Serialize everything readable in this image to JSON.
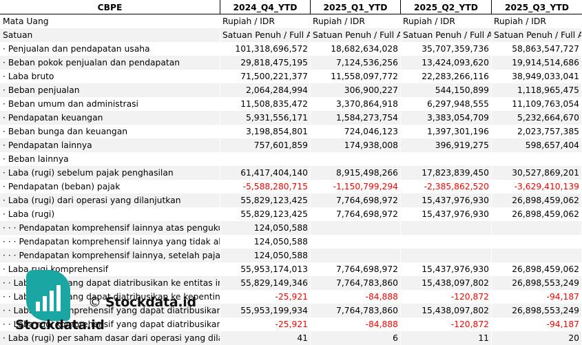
{
  "header": {
    "ticker": "CBPE",
    "periods": [
      "2024_Q4_YTD",
      "2025_Q1_YTD",
      "2025_Q2_YTD",
      "2025_Q3_YTD"
    ]
  },
  "currency_row": {
    "label": "Mata Uang",
    "values": [
      "Rupiah / IDR",
      "Rupiah / IDR",
      "Rupiah / IDR",
      "Rupiah / IDR"
    ]
  },
  "unit_row": {
    "label": "Satuan",
    "values": [
      "Satuan Penuh / Full Amount",
      "Satuan Penuh / Full Amount",
      "Satuan Penuh / Full Amount",
      "Satuan Penuh / Full Amount"
    ]
  },
  "rows": [
    {
      "label": "· Penjualan dan pendapatan usaha",
      "values": [
        "101,318,696,572",
        "18,682,634,028",
        "35,707,359,736",
        "58,863,547,727"
      ]
    },
    {
      "label": "· Beban pokok penjualan dan pendapatan",
      "values": [
        "29,818,475,195",
        "7,124,536,256",
        "13,424,093,620",
        "19,914,514,686"
      ]
    },
    {
      "label": "· Laba bruto",
      "values": [
        "71,500,221,377",
        "11,558,097,772",
        "22,283,266,116",
        "38,949,033,041"
      ]
    },
    {
      "label": "· Beban penjualan",
      "values": [
        "2,064,284,994",
        "306,900,227",
        "544,150,899",
        "1,118,965,475"
      ]
    },
    {
      "label": "· Beban umum dan administrasi",
      "values": [
        "11,508,835,472",
        "3,370,864,918",
        "6,297,948,555",
        "11,109,763,054"
      ]
    },
    {
      "label": "· Pendapatan keuangan",
      "values": [
        "5,931,556,171",
        "1,584,273,754",
        "3,383,054,709",
        "5,232,664,670"
      ]
    },
    {
      "label": "· Beban bunga dan keuangan",
      "values": [
        "3,198,854,801",
        "724,046,123",
        "1,397,301,196",
        "2,023,757,385"
      ]
    },
    {
      "label": "· Pendapatan lainnya",
      "values": [
        "757,601,859",
        "174,938,008",
        "396,919,275",
        "598,657,404"
      ]
    },
    {
      "label": "· Beban lainnya",
      "values": [
        "",
        "",
        "",
        ""
      ]
    },
    {
      "label": "· Laba (rugi) sebelum pajak penghasilan",
      "values": [
        "61,417,404,140",
        "8,915,498,266",
        "17,823,839,450",
        "30,527,869,201"
      ]
    },
    {
      "label": "· Pendapatan (beban) pajak",
      "values": [
        "-5,588,280,715",
        "-1,150,799,294",
        "-2,385,862,520",
        "-3,629,410,139"
      ]
    },
    {
      "label": "· Laba (rugi) dari operasi yang dilanjutkan",
      "values": [
        "55,829,123,425",
        "7,764,698,972",
        "15,437,976,930",
        "26,898,459,062"
      ]
    },
    {
      "label": "· Laba (rugi)",
      "values": [
        "55,829,123,425",
        "7,764,698,972",
        "15,437,976,930",
        "26,898,459,062"
      ]
    },
    {
      "label": "· · · Pendapatan komprehensif lainnya atas pengukuran kembali",
      "values": [
        "124,050,588",
        "",
        "",
        ""
      ]
    },
    {
      "label": "· · · Pendapatan komprehensif lainnya yang tidak akan direklasifikasi",
      "values": [
        "124,050,588",
        "",
        "",
        ""
      ]
    },
    {
      "label": "· · · Pendapatan komprehensif lainnya, setelah pajak",
      "values": [
        "124,050,588",
        "",
        "",
        ""
      ]
    },
    {
      "label": "· Laba rugi komprehensif",
      "values": [
        "55,953,174,013",
        "7,764,698,972",
        "15,437,976,930",
        "26,898,459,062"
      ]
    },
    {
      "label": "· · Laba (rugi) yang dapat diatribusikan ke entitas induk",
      "values": [
        "55,829,149,346",
        "7,764,783,860",
        "15,438,097,802",
        "26,898,553,249"
      ]
    },
    {
      "label": "· · Laba (rugi) yang dapat diatribusikan ke kepentingan non-pengendali",
      "values": [
        "-25,921",
        "-84,888",
        "-120,872",
        "-94,187"
      ]
    },
    {
      "label": "· · Laba rugi komprehensif yang dapat diatribusikan ke entitas induk",
      "values": [
        "55,953,199,934",
        "7,764,783,860",
        "15,438,097,802",
        "26,898,553,249"
      ]
    },
    {
      "label": "· · Laba rugi komprehensif yang dapat diatribusikan ke kepentingan non-pengendali",
      "values": [
        "-25,921",
        "-84,888",
        "-120,872",
        "-94,187"
      ]
    },
    {
      "label": "· Laba (rugi) per saham dasar dari operasi yang dilanjutkan",
      "values": [
        "41",
        "6",
        "11",
        "20"
      ]
    }
  ],
  "watermark": {
    "copyright_symbol": "©",
    "copyright_text": "Stockdata.id",
    "brand": "Stockdata.id",
    "icon": "bar-chart-logo-icon",
    "icon_color": "#1aa6a3"
  },
  "colors": {
    "negative": "#ff0000",
    "shaded_row": "#f2f2f2",
    "header_border": "#000000"
  }
}
